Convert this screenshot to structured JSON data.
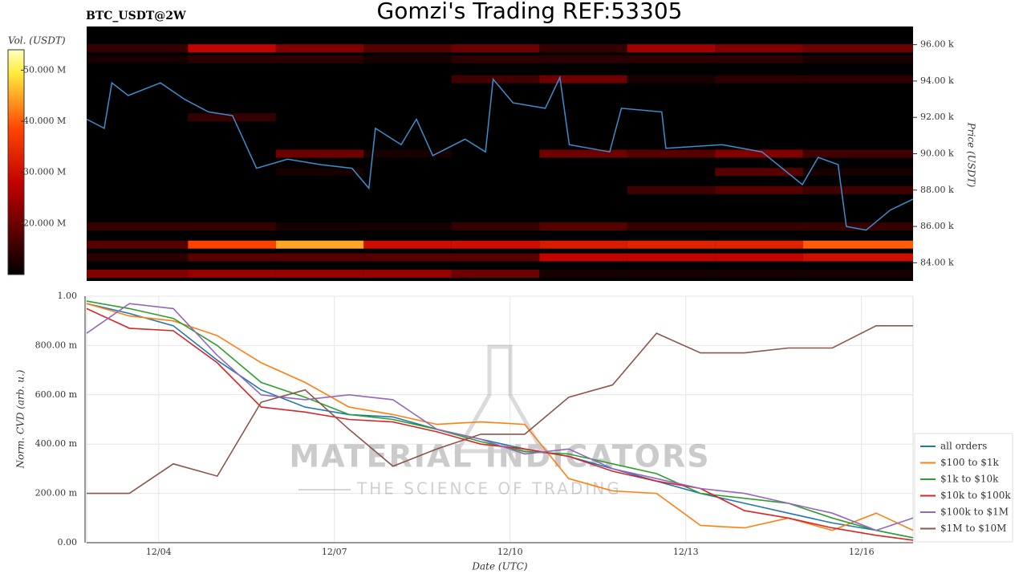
{
  "chart_data": [
    {
      "type": "heatmap",
      "title": "Gomzi's Trading REF:53305",
      "subtitle": "BTC_USDT@2W",
      "ylabel": "Price (USDT)",
      "colorbar_label": "Vol. (USDT)",
      "clim": [
        10,
        54
      ],
      "colorbar_ticks": [
        {
          "value": 20,
          "label": "20.000 M"
        },
        {
          "value": 30,
          "label": "30.000 M"
        },
        {
          "value": 40,
          "label": "40.000 M"
        },
        {
          "value": 50,
          "label": "50.000 M"
        }
      ],
      "xlim": [
        2.77,
        16.88
      ],
      "ylim": [
        83,
        97
      ],
      "yticks": [
        {
          "value": 84,
          "label": "84.00 k"
        },
        {
          "value": 86,
          "label": "86.00 k"
        },
        {
          "value": 88,
          "label": "88.00 k"
        },
        {
          "value": 90,
          "label": "90.00 k"
        },
        {
          "value": 92,
          "label": "92.00 k"
        },
        {
          "value": 94,
          "label": "94.00 k"
        },
        {
          "value": 96,
          "label": "96.00 k"
        }
      ],
      "heatmap": {
        "x_edges": [
          2.77,
          4.5,
          6,
          7.5,
          9,
          10.5,
          12,
          13.5,
          15,
          16.88
        ],
        "price_levels": [
          95.8,
          95.2,
          94.1,
          92.0,
          90.0,
          89.0,
          88.0,
          86.0,
          85.0,
          84.3,
          83.4
        ],
        "values": [
          [
            15,
            28,
            22,
            18,
            20,
            15,
            25,
            22,
            20
          ],
          [
            12,
            14,
            14,
            12,
            14,
            14,
            14,
            14,
            12
          ],
          [
            5,
            8,
            5,
            5,
            16,
            20,
            12,
            14,
            14
          ],
          [
            8,
            15,
            5,
            5,
            8,
            5,
            5,
            5,
            5
          ],
          [
            5,
            5,
            20,
            12,
            5,
            20,
            18,
            22,
            16
          ],
          [
            5,
            8,
            12,
            8,
            5,
            5,
            5,
            18,
            12
          ],
          [
            5,
            5,
            5,
            5,
            5,
            5,
            16,
            18,
            16
          ],
          [
            15,
            15,
            12,
            12,
            15,
            18,
            15,
            15,
            15
          ],
          [
            18,
            38,
            45,
            30,
            30,
            32,
            33,
            33,
            40
          ],
          [
            14,
            18,
            18,
            18,
            18,
            28,
            28,
            28,
            30
          ],
          [
            22,
            24,
            24,
            24,
            20,
            12,
            12,
            12,
            12
          ]
        ]
      },
      "price": {
        "color": "#3a8fd0",
        "x": [
          2.77,
          3.07,
          3.2,
          3.48,
          4.03,
          4.44,
          4.85,
          5.26,
          5.67,
          6.2,
          6.77,
          7.3,
          7.59,
          7.7,
          8.14,
          8.4,
          8.68,
          9.23,
          9.58,
          9.71,
          10.05,
          10.6,
          10.85,
          11.01,
          11.7,
          11.9,
          12.59,
          12.66,
          13.62,
          14.3,
          14.99,
          15.26,
          15.6,
          15.74,
          16.08,
          16.49,
          16.88
        ],
        "values": [
          91.9,
          91.4,
          93.9,
          93.2,
          93.9,
          93.0,
          92.3,
          92.1,
          89.2,
          89.7,
          89.4,
          89.2,
          88.1,
          91.4,
          90.5,
          91.9,
          89.9,
          90.8,
          90.1,
          94.1,
          92.8,
          92.5,
          94.2,
          90.5,
          90.1,
          92.5,
          92.3,
          90.3,
          90.5,
          90.1,
          88.3,
          89.8,
          89.4,
          86.0,
          85.8,
          86.9,
          87.5
        ]
      }
    },
    {
      "type": "line",
      "xlabel": "Date (UTC)",
      "ylabel": "Norm. CVD (arb. u.)",
      "xlim": [
        2.77,
        16.88
      ],
      "ylim": [
        0,
        1
      ],
      "xticks": [
        {
          "value": 4,
          "label": "12/04"
        },
        {
          "value": 7,
          "label": "12/07"
        },
        {
          "value": 10,
          "label": "12/10"
        },
        {
          "value": 13,
          "label": "12/13"
        },
        {
          "value": 16,
          "label": "12/16"
        }
      ],
      "yticks": [
        {
          "value": 0,
          "label": "0.00"
        },
        {
          "value": 0.2,
          "label": "200.00 m"
        },
        {
          "value": 0.4,
          "label": "400.00 m"
        },
        {
          "value": 0.6,
          "label": "600.00 m"
        },
        {
          "value": 0.8,
          "label": "800.00 m"
        },
        {
          "value": 1,
          "label": "1.00"
        }
      ],
      "grid": true,
      "legend": "right",
      "watermark": {
        "title": "MATERIAL INDICATORS",
        "subtitle": "THE SCIENCE OF TRADING"
      },
      "x": [
        2.77,
        3.5,
        4.25,
        5,
        5.75,
        6.5,
        7.25,
        8,
        8.75,
        9.5,
        10.25,
        11,
        11.75,
        12.5,
        13.25,
        14,
        14.75,
        15.5,
        16.25,
        16.88
      ],
      "series": [
        {
          "name": "all orders",
          "color": "#1f77b4",
          "values": [
            0.97,
            0.93,
            0.88,
            0.74,
            0.62,
            0.55,
            0.52,
            0.51,
            0.46,
            0.42,
            0.38,
            0.35,
            0.3,
            0.25,
            0.2,
            0.16,
            0.12,
            0.08,
            0.05,
            0.02
          ]
        },
        {
          "name": "$100 to $1k",
          "color": "#ff7f0e",
          "values": [
            0.97,
            0.92,
            0.9,
            0.84,
            0.73,
            0.65,
            0.55,
            0.52,
            0.48,
            0.49,
            0.48,
            0.26,
            0.21,
            0.2,
            0.07,
            0.06,
            0.1,
            0.05,
            0.12,
            0.05
          ]
        },
        {
          "name": "$1k to $10k",
          "color": "#2ca02c",
          "values": [
            0.98,
            0.95,
            0.91,
            0.8,
            0.65,
            0.59,
            0.52,
            0.5,
            0.46,
            0.41,
            0.37,
            0.36,
            0.32,
            0.28,
            0.2,
            0.18,
            0.16,
            0.1,
            0.05,
            0.02
          ]
        },
        {
          "name": "$10k to $100k",
          "color": "#d62728",
          "values": [
            0.95,
            0.87,
            0.86,
            0.73,
            0.55,
            0.53,
            0.5,
            0.49,
            0.45,
            0.4,
            0.38,
            0.35,
            0.29,
            0.25,
            0.22,
            0.13,
            0.1,
            0.06,
            0.03,
            0.01
          ]
        },
        {
          "name": "$100k to $1M",
          "color": "#9467bd",
          "values": [
            0.85,
            0.97,
            0.95,
            0.76,
            0.6,
            0.58,
            0.6,
            0.58,
            0.46,
            0.42,
            0.36,
            0.38,
            0.3,
            0.26,
            0.22,
            0.2,
            0.16,
            0.12,
            0.05,
            0.1
          ]
        },
        {
          "name": "$1M to $10M",
          "color": "#8c564b",
          "values": [
            0.2,
            0.2,
            0.32,
            0.27,
            0.57,
            0.62,
            0.46,
            0.31,
            0.38,
            0.44,
            0.44,
            0.59,
            0.64,
            0.85,
            0.77,
            0.77,
            0.79,
            0.79,
            0.88,
            0.88
          ]
        }
      ]
    }
  ]
}
